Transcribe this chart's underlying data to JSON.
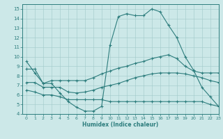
{
  "bg_color": "#cce8e8",
  "line_color": "#2d7d7d",
  "xlabel": "Humidex (Indice chaleur)",
  "xlim": [
    -0.5,
    23
  ],
  "ylim": [
    4,
    15.5
  ],
  "xticks": [
    0,
    1,
    2,
    3,
    4,
    5,
    6,
    7,
    8,
    9,
    10,
    11,
    12,
    13,
    14,
    15,
    16,
    17,
    18,
    19,
    20,
    21,
    22,
    23
  ],
  "yticks": [
    4,
    5,
    6,
    7,
    8,
    9,
    10,
    11,
    12,
    13,
    14,
    15
  ],
  "line1_x": [
    0,
    1,
    2,
    3,
    4,
    5,
    6,
    7,
    8,
    9,
    10,
    11,
    12,
    13,
    14,
    15,
    16,
    17,
    18,
    19,
    20,
    21,
    22,
    23
  ],
  "line1_y": [
    9.5,
    8.3,
    7.2,
    7.2,
    6.2,
    5.3,
    4.7,
    4.3,
    4.3,
    4.8,
    11.2,
    14.2,
    14.5,
    14.3,
    14.3,
    15.0,
    14.7,
    13.3,
    12.0,
    10.0,
    8.6,
    6.8,
    5.8,
    4.8
  ],
  "line2_x": [
    0,
    1,
    2,
    3,
    4,
    5,
    6,
    7,
    8,
    9,
    10,
    11,
    12,
    13,
    14,
    15,
    16,
    17,
    18,
    19,
    20,
    21,
    22,
    23
  ],
  "line2_y": [
    8.7,
    8.7,
    7.2,
    7.5,
    7.5,
    7.5,
    7.5,
    7.5,
    7.8,
    8.2,
    8.5,
    8.8,
    9.0,
    9.3,
    9.5,
    9.8,
    10.0,
    10.2,
    9.8,
    9.0,
    8.5,
    8.3,
    8.3,
    8.3
  ],
  "line3_x": [
    0,
    1,
    2,
    3,
    4,
    5,
    6,
    7,
    8,
    9,
    10,
    11,
    12,
    13,
    14,
    15,
    16,
    17,
    18,
    19,
    20,
    21,
    22,
    23
  ],
  "line3_y": [
    7.3,
    7.3,
    6.8,
    6.8,
    6.8,
    6.3,
    6.2,
    6.3,
    6.5,
    6.8,
    7.0,
    7.2,
    7.5,
    7.8,
    8.0,
    8.2,
    8.3,
    8.3,
    8.3,
    8.2,
    8.0,
    7.8,
    7.5,
    7.3
  ],
  "line4_x": [
    0,
    1,
    2,
    3,
    4,
    5,
    6,
    7,
    8,
    9,
    10,
    11,
    12,
    13,
    14,
    15,
    16,
    17,
    18,
    19,
    20,
    21,
    22,
    23
  ],
  "line4_y": [
    6.5,
    6.3,
    6.0,
    6.0,
    5.8,
    5.5,
    5.5,
    5.5,
    5.5,
    5.5,
    5.3,
    5.3,
    5.3,
    5.3,
    5.3,
    5.3,
    5.3,
    5.3,
    5.3,
    5.3,
    5.3,
    5.3,
    5.0,
    4.8
  ]
}
